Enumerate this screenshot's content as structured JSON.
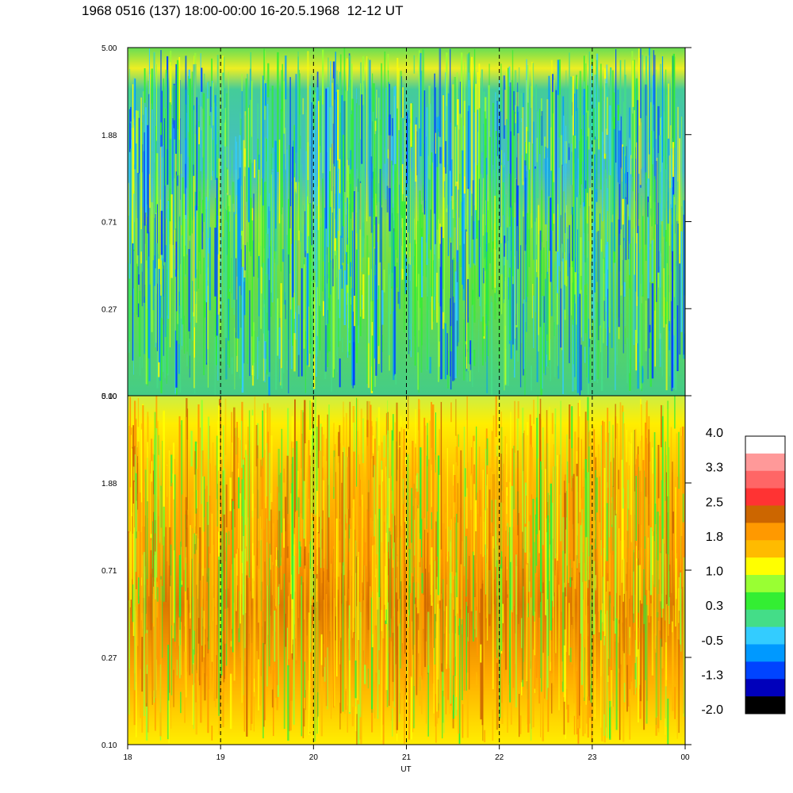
{
  "title": "1968 0516 (137) 18:00-00:00 16-20.5.1968  12-12 UT",
  "chart_data": [
    {
      "type": "heatmap",
      "panel": "top",
      "x_range": [
        18,
        24
      ],
      "y_ticks": [
        "5.00",
        "1.88",
        "0.71",
        "0.27",
        "0.10"
      ],
      "dominant_level_range": [
        -1.3,
        1.0
      ],
      "grid": "vertical dashed lines at each hour"
    },
    {
      "type": "heatmap",
      "panel": "bottom",
      "x_range": [
        18,
        24
      ],
      "x_ticks": [
        "18",
        "19",
        "20",
        "21",
        "22",
        "23",
        "00"
      ],
      "xlabel": "UT",
      "y_ticks": [
        "5.00",
        "1.88",
        "0.71",
        "0.27",
        "0.10"
      ],
      "dominant_level_range": [
        0.3,
        2.2
      ],
      "grid": "vertical dashed lines at each hour"
    }
  ],
  "colorbar": {
    "labels": [
      "4.0",
      "3.3",
      "2.5",
      "1.8",
      "1.0",
      "0.3",
      "-0.5",
      "-1.3",
      "-2.0"
    ],
    "colors_top_to_bottom": [
      "#ffffff",
      "#ff9999",
      "#ff6666",
      "#ff3333",
      "#cc6600",
      "#ff9900",
      "#ffbb00",
      "#ffff00",
      "#99ff33",
      "#33ee33",
      "#44dd88",
      "#33ccff",
      "#0099ff",
      "#0044ff",
      "#0000bb",
      "#000000"
    ]
  }
}
